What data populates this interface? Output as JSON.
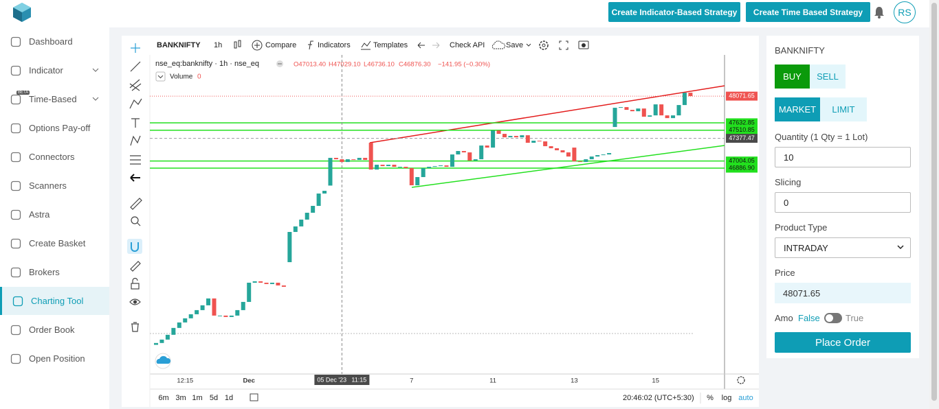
{
  "header": {
    "buttons": [
      "Create Indicator-Based Strategy",
      "Create Time Based Strategy"
    ],
    "avatar": "RS"
  },
  "sidebar": {
    "items": [
      "Dashboard",
      "Indicator",
      "Time-Based",
      "Options Pay-off",
      "Connectors",
      "Scanners",
      "Astra",
      "Create Basket",
      "Brokers",
      "Charting Tool",
      "Order Book",
      "Open Position"
    ],
    "badge": "BETA"
  },
  "chart_toolbar": {
    "symbol": "BANKNIFTY",
    "interval": "1h",
    "compare": "Compare",
    "indicators": "Indicators",
    "templates": "Templates",
    "check_api": "Check API",
    "save": "Save"
  },
  "chart_legend": {
    "series": "nse_eq:banknifty · 1h · nse_eq",
    "ohlc": [
      "O47013.40",
      "H47029.10",
      "L46736.10",
      "C46876.30",
      "−141.95 (−0.30%)"
    ],
    "volume_label": "Volume",
    "volume": 0
  },
  "chart_data": {
    "type": "candlestick",
    "x": [
      null,
      null,
      null,
      null,
      null,
      "12:15",
      null,
      null,
      null,
      null,
      null,
      null,
      null,
      null,
      null,
      null,
      "Dec",
      null,
      null,
      null,
      null,
      null,
      null,
      null,
      null,
      null,
      null,
      null,
      null,
      null,
      null,
      null,
      null,
      null,
      null,
      null,
      null,
      null,
      null,
      null,
      null,
      null,
      null,
      null,
      "7",
      null,
      null,
      null,
      null,
      null,
      null,
      null,
      null,
      null,
      null,
      null,
      null,
      null,
      "11",
      null,
      null,
      null,
      null,
      null,
      null,
      null,
      null,
      null,
      null,
      null,
      null,
      null,
      "13",
      null,
      null,
      null,
      null,
      null,
      null,
      null,
      null,
      null,
      null,
      null,
      null,
      null,
      "15",
      null,
      null,
      null,
      null,
      null,
      null
    ],
    "open": [
      43980,
      44010,
      44066,
      44145,
      44258,
      44348,
      44416,
      44483,
      44551,
      44630,
      44743,
      44461,
      44461,
      44438,
      44461,
      44551,
      44686,
      45002,
      45025,
      45002,
      44980,
      45002,
      44957,
      45340,
      45837,
      45928,
      46040,
      46153,
      46266,
      46469,
      46600,
      47056,
      47033,
      46988,
      47033,
      47022,
      47056,
      47304,
      46864,
      46943,
      46920,
      46943,
      46909,
      46909,
      46887,
      46605,
      46740,
      46887,
      46909,
      46920,
      46932,
      46909,
      47112,
      47169,
      47146,
      47011,
      47033,
      47259,
      47225,
      47507,
      47451,
      47394,
      47417,
      47394,
      47428,
      47304,
      47338,
      47327,
      47248,
      47214,
      47181,
      47146,
      47225,
      46999,
      46988,
      47033,
      47078,
      47101,
      47112,
      47564,
      47880,
      47891,
      47846,
      47823,
      47868,
      47733,
      47755,
      47936,
      47755,
      47710,
      47755,
      47925,
      48128
    ],
    "close": [
      44010,
      44066,
      44145,
      44258,
      44348,
      44416,
      44483,
      44551,
      44630,
      44743,
      44461,
      44461,
      44438,
      44461,
      44551,
      44686,
      45002,
      45025,
      45002,
      44980,
      45002,
      44957,
      44935,
      45837,
      45928,
      46040,
      46153,
      46266,
      46469,
      46514,
      47056,
      47033,
      46988,
      47033,
      47022,
      47056,
      47022,
      46864,
      46943,
      46920,
      46943,
      46909,
      46909,
      46887,
      46605,
      46740,
      46887,
      46909,
      46920,
      46932,
      46909,
      47112,
      47169,
      47146,
      47011,
      47033,
      47259,
      47225,
      47507,
      47451,
      47394,
      47417,
      47394,
      47428,
      47304,
      47338,
      47327,
      47248,
      47214,
      47181,
      47146,
      47078,
      46999,
      46988,
      47033,
      47078,
      47101,
      47112,
      47135,
      47880,
      47891,
      47846,
      47823,
      47868,
      47733,
      47755,
      47936,
      47755,
      47710,
      47755,
      47925,
      48128,
      48071.65
    ],
    "up_color": "#26a69a",
    "down_color": "#ef5350",
    "ylim": [
      43500,
      48750
    ],
    "price_levels": [
      {
        "value": 48071.65,
        "label": "48071.65",
        "color": "#ef5350",
        "text_color": "#ffffff",
        "line": "dotted"
      },
      {
        "value": 47632.85,
        "label": "47632.85",
        "color": "#22e01e",
        "text_color": "#111111",
        "line": "solid"
      },
      {
        "value": 47510.85,
        "label": "47510.85",
        "color": "#22e01e",
        "text_color": "#111111",
        "line": "solid"
      },
      {
        "value": 47377.47,
        "label": "47377.47",
        "color": "#4a4a4a",
        "text_color": "#ffffff",
        "line": "dashed"
      },
      {
        "value": 47004.05,
        "label": "47004.05",
        "color": "#22e01e",
        "text_color": "#111111",
        "line": "solid"
      },
      {
        "value": 46886.9,
        "label": "46886.90",
        "color": "#22e01e",
        "text_color": "#111111",
        "line": "solid"
      }
    ],
    "crosshair_date": "05 Dec '23",
    "crosshair_time": "11:15"
  },
  "chart_footer": {
    "ranges": [
      "6m",
      "3m",
      "1m",
      "5d",
      "1d"
    ],
    "clock": "20:46:02 (UTC+5:30)",
    "percent": "%",
    "log": "log",
    "auto": "auto"
  },
  "order": {
    "symbol": "BANKNIFTY",
    "buy": "BUY",
    "sell": "SELL",
    "market": "MARKET",
    "limit": "LIMIT",
    "quantity_label": "Quantity (1 Qty = 1 Lot)",
    "quantity": 10,
    "slicing_label": "Slicing",
    "slicing": 0,
    "product_type_label": "Product Type",
    "product_type": "INTRADAY",
    "price_label": "Price",
    "price": 48071.65,
    "amo_label": "Amo",
    "amo_off": "False",
    "amo_on": "True",
    "submit": "Place Order"
  }
}
